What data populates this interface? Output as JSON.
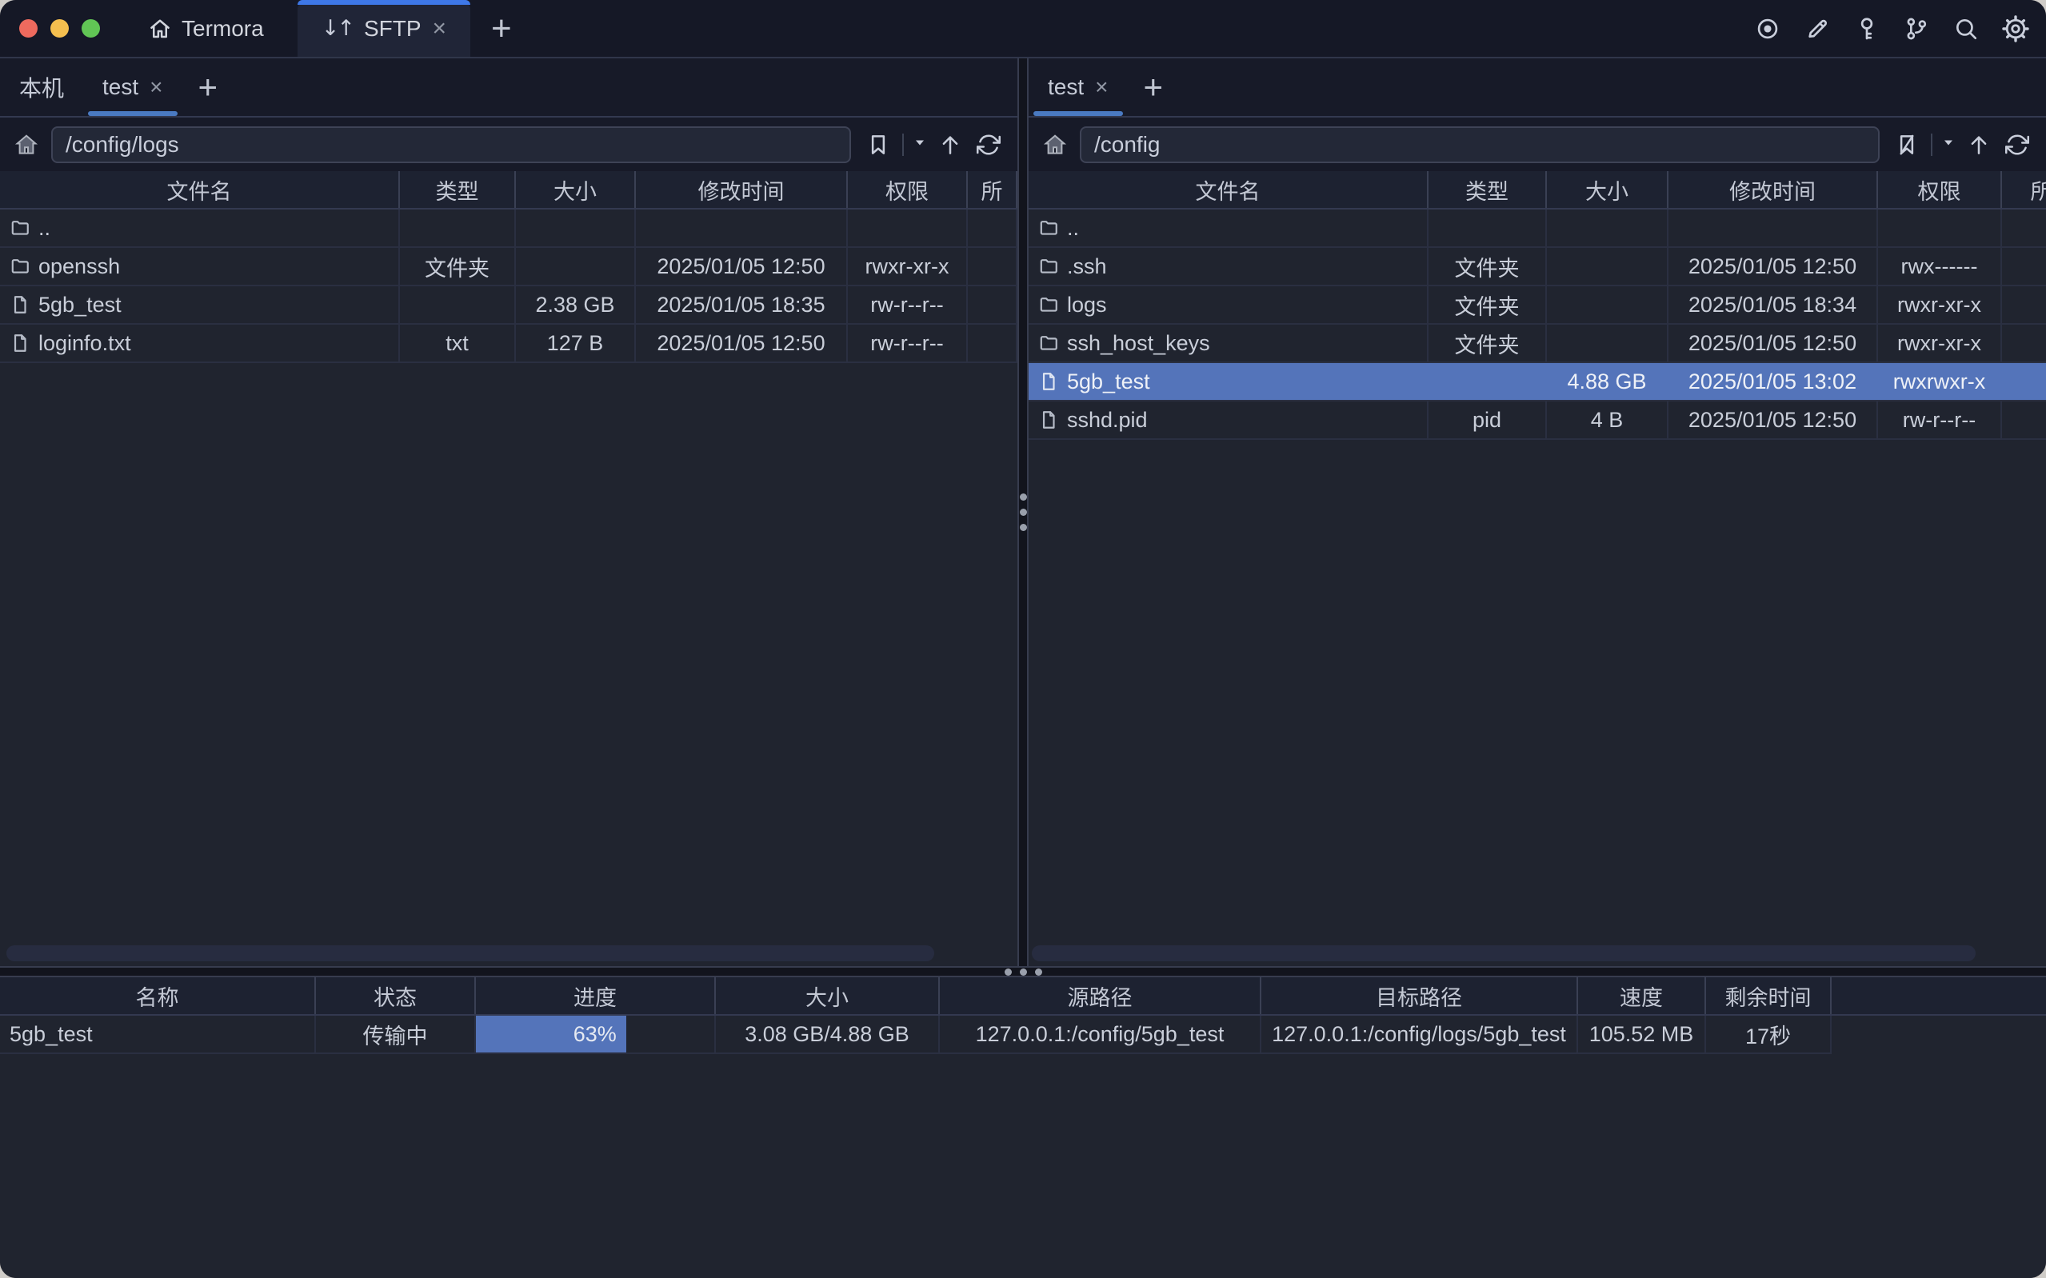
{
  "titlebar": {
    "app_tab_label": "Termora",
    "active_tab_label": "SFTP",
    "transfer_glyph": "↓↑",
    "close_glyph": "×",
    "plus_glyph": "+",
    "icons": [
      "record-icon",
      "edit-icon",
      "key-icon",
      "branch-icon",
      "search-icon",
      "settings-icon"
    ]
  },
  "left_panel": {
    "tabs": {
      "local_label": "本机",
      "session_label": "test"
    },
    "path": "/config/logs",
    "columns": [
      "文件名",
      "类型",
      "大小",
      "修改时间",
      "权限",
      "所"
    ],
    "rows": [
      {
        "name": "..",
        "type": "",
        "size": "",
        "modified": "",
        "perms": ""
      },
      {
        "name": "openssh",
        "type": "文件夹",
        "size": "",
        "modified": "2025/01/05 12:50",
        "perms": "rwxr-xr-x"
      },
      {
        "name": "5gb_test",
        "type": "",
        "size": "2.38 GB",
        "modified": "2025/01/05 18:35",
        "perms": "rw-r--r--"
      },
      {
        "name": "loginfo.txt",
        "type": "txt",
        "size": "127 B",
        "modified": "2025/01/05 12:50",
        "perms": "rw-r--r--"
      }
    ]
  },
  "right_panel": {
    "tabs": {
      "session_label": "test"
    },
    "path": "/config",
    "columns": [
      "文件名",
      "类型",
      "大小",
      "修改时间",
      "权限",
      "所"
    ],
    "rows": [
      {
        "name": "..",
        "type": "",
        "size": "",
        "modified": "",
        "perms": ""
      },
      {
        "name": ".ssh",
        "type": "文件夹",
        "size": "",
        "modified": "2025/01/05 12:50",
        "perms": "rwx------"
      },
      {
        "name": "logs",
        "type": "文件夹",
        "size": "",
        "modified": "2025/01/05 18:34",
        "perms": "rwxr-xr-x"
      },
      {
        "name": "ssh_host_keys",
        "type": "文件夹",
        "size": "",
        "modified": "2025/01/05 12:50",
        "perms": "rwxr-xr-x"
      },
      {
        "name": "5gb_test",
        "type": "",
        "size": "4.88 GB",
        "modified": "2025/01/05 13:02",
        "perms": "rwxrwxr-x"
      },
      {
        "name": "sshd.pid",
        "type": "pid",
        "size": "4 B",
        "modified": "2025/01/05 12:50",
        "perms": "rw-r--r--"
      }
    ]
  },
  "transfer": {
    "columns": [
      "名称",
      "状态",
      "进度",
      "大小",
      "源路径",
      "目标路径",
      "速度",
      "剩余时间"
    ],
    "row": {
      "name": "5gb_test",
      "status": "传输中",
      "progress_label": "63%",
      "progress_pct": 63,
      "size": "3.08 GB/4.88 GB",
      "source": "127.0.0.1:/config/5gb_test",
      "target": "127.0.0.1:/config/logs/5gb_test",
      "speed": "105.52 MB",
      "remaining": "17秒"
    }
  },
  "colors": {
    "accent": "#3e78e8",
    "underline": "#4a7ac2",
    "selection": "#5474ba",
    "traffic_red": "#ee6a5e",
    "traffic_yellow": "#f5bf4f",
    "traffic_green": "#61c555"
  }
}
